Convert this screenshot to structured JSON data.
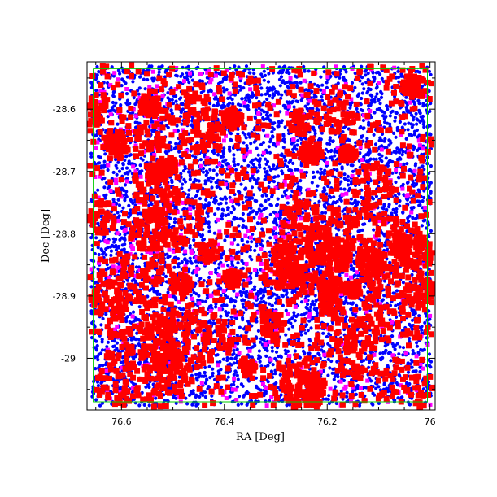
{
  "chart_data": {
    "type": "scatter",
    "title": "",
    "xlabel": "RA [Deg]",
    "ylabel": "Dec [Deg]",
    "xlim": [
      76.667,
      75.99
    ],
    "ylim": [
      -29.083,
      -28.524
    ],
    "x_reversed": true,
    "xticks": [
      76.6,
      76.4,
      76.2,
      76.0
    ],
    "xtick_labels": [
      "76.6",
      "76.4",
      "76.2",
      "76"
    ],
    "yticks": [
      -28.6,
      -28.7,
      -28.8,
      -28.9,
      -29.0
    ],
    "ytick_labels": [
      "-28.6",
      "-28.7",
      "-28.8",
      "-28.9",
      "-29"
    ],
    "grid": false,
    "legend": false,
    "footprint_outline": {
      "color": "#00cc00",
      "ra": [
        76.655,
        76.005,
        76.005,
        76.655,
        76.655
      ],
      "dec": [
        -28.535,
        -28.535,
        -29.07,
        -29.07,
        -28.535
      ]
    },
    "series": [
      {
        "color": "#0000ff",
        "marker": "small-dot",
        "approx_count": 6000,
        "distribution": "dense uniform over field"
      },
      {
        "color": "#ff00ff",
        "marker": "small-square",
        "approx_count": 500,
        "distribution": "sparse uniform over field"
      },
      {
        "color": "#ff0000",
        "marker": "square",
        "approx_count": 3500,
        "distribution": "clustered, partly ringed around bright-source holes"
      }
    ],
    "holes": [
      {
        "ra": 76.45,
        "dec": -28.593
      },
      {
        "ra": 76.44,
        "dec": -28.633
      },
      {
        "ra": 76.18,
        "dec": -28.61
      },
      {
        "ra": 76.62,
        "dec": -28.895
      },
      {
        "ra": 76.15,
        "dec": -28.997
      },
      {
        "ra": 76.264,
        "dec": -29.035
      }
    ]
  }
}
